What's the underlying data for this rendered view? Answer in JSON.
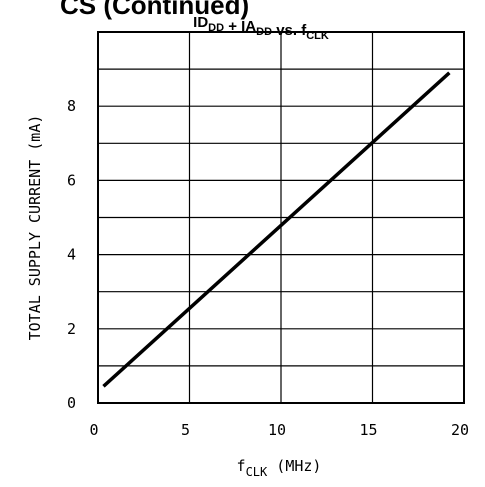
{
  "header": {
    "partial_text": "CS (Continued)"
  },
  "chart_data": {
    "type": "line",
    "title_parts": [
      {
        "text": "ID",
        "sub": "DD"
      },
      {
        "text": " + IA",
        "sub": "DD"
      },
      {
        "text": " vs. f",
        "sub": "CLK"
      }
    ],
    "xlabel_main": "f",
    "xlabel_sub": "CLK",
    "xlabel_unit": " (MHz)",
    "ylabel": "TOTAL SUPPLY CURRENT (mA)",
    "xlim": [
      0,
      20
    ],
    "ylim": [
      0,
      10
    ],
    "x_ticks": [
      0,
      5,
      10,
      15,
      20
    ],
    "y_ticks": [
      0,
      2,
      4,
      6,
      8
    ],
    "x_gridlines": [
      5,
      10,
      15
    ],
    "y_gridlines": [
      1,
      2,
      3,
      4,
      5,
      6,
      7,
      8,
      9
    ],
    "grid": true,
    "series": [
      {
        "x": [
          0.3,
          19.2
        ],
        "y": [
          0.45,
          8.9
        ]
      }
    ]
  }
}
